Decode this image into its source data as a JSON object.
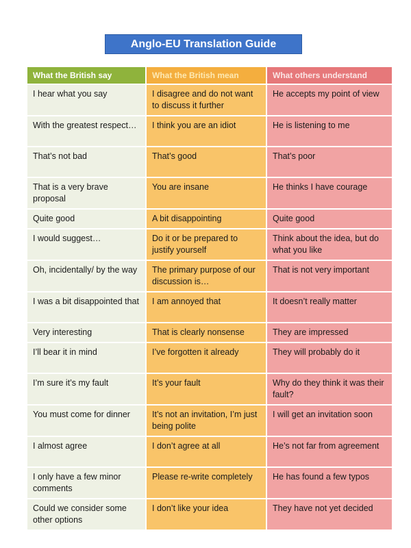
{
  "title": "Anglo-EU Translation Guide",
  "headers": [
    "What the British say",
    "What the British mean",
    "What others understand"
  ],
  "rows": [
    [
      "I hear what you say",
      "I disagree and do not want to discuss it further",
      "He accepts my point of view"
    ],
    [
      "With the greatest respect…",
      "I think you are an idiot",
      "He is listening to me"
    ],
    [
      "That’s not bad",
      "That’s good",
      "That’s poor"
    ],
    [
      "That is a very brave proposal",
      "You are insane",
      "He thinks I have courage"
    ],
    [
      "Quite good",
      "A bit disappointing",
      "Quite good"
    ],
    [
      "I would suggest…",
      "Do it or be prepared to justify yourself",
      "Think about the idea, but do what you like"
    ],
    [
      "Oh, incidentally/ by the way",
      "The primary purpose of our discussion is…",
      "That is not very important"
    ],
    [
      "I was a bit disappointed that",
      "I am annoyed that",
      "It doesn’t really matter"
    ],
    [
      "Very interesting",
      "That is clearly nonsense",
      "They are impressed"
    ],
    [
      "I’ll bear it in mind",
      "I’ve forgotten it already",
      "They will probably do it"
    ],
    [
      "I’m sure it’s my fault",
      "It’s your fault",
      "Why do they think it was their fault?"
    ],
    [
      "You must come for dinner",
      "It’s not an invitation, I’m just being polite",
      "I will get an invitation soon"
    ],
    [
      "I almost agree",
      "I don’t agree at all",
      "He’s not far from agreement"
    ],
    [
      "I only have a few minor comments",
      "Please re-write completely",
      "He has found a few typos"
    ],
    [
      "Could we consider some other options",
      "I don’t like your idea",
      "They have not yet decided"
    ]
  ],
  "colors": {
    "title_bg": "#3e74c9",
    "say_header": "#8fb33c",
    "mean_header": "#f4ae3e",
    "understand_header": "#e6787a",
    "say_cell": "#eef1e4",
    "mean_cell": "#f9c469",
    "understand_cell": "#f1a3a3"
  }
}
